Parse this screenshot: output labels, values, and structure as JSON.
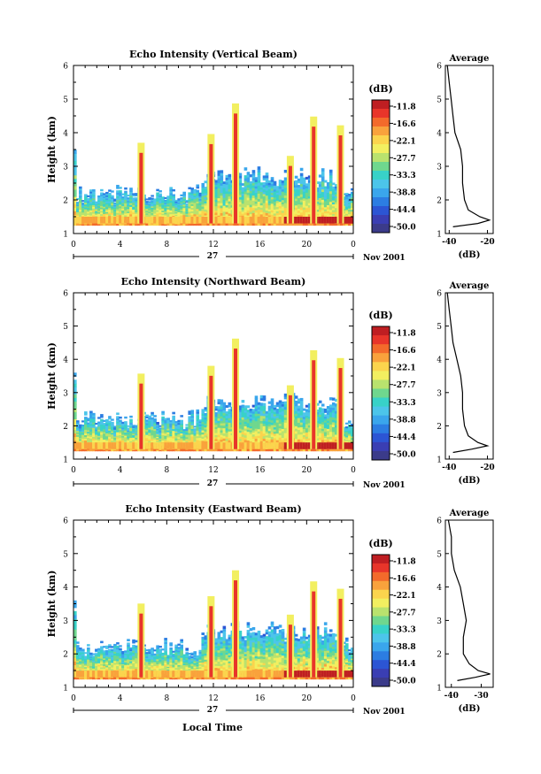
{
  "figure": {
    "xlabel": "Local Time"
  },
  "chart_data": [
    {
      "type": "heatmap",
      "title": "Echo Intensity (Vertical Beam)",
      "ylabel": "Height (km)",
      "xlabel": "",
      "x_ticks": [
        "0",
        "4",
        "8",
        "12",
        "16",
        "20",
        "0"
      ],
      "x_tick_hours": [
        0,
        4,
        8,
        12,
        16,
        20,
        24
      ],
      "y_ticks": [
        "1",
        "2",
        "3",
        "4",
        "5",
        "6"
      ],
      "y_tick_values": [
        1,
        2,
        3,
        4,
        5,
        6
      ],
      "date_label": "27",
      "month_label": "Nov 2001",
      "xlim": [
        0,
        24
      ],
      "ylim": [
        1,
        6
      ],
      "colorbar": {
        "unit": "(dB)",
        "ticks": [
          "-11.8",
          "-16.6",
          "-22.1",
          "-27.7",
          "-33.3",
          "-38.8",
          "-44.4",
          "-50.0"
        ]
      },
      "profile": {
        "title": "Average",
        "xlabel": "(dB)",
        "x_ticks": [
          "-40",
          "-20"
        ],
        "xlim": [
          -42,
          -17
        ],
        "y_ticks": [
          "1",
          "2",
          "3",
          "4",
          "5",
          "6"
        ],
        "heights": [
          1.2,
          1.3,
          1.4,
          1.5,
          1.7,
          2.0,
          2.5,
          3.0,
          3.5,
          4.0,
          4.5,
          5.0,
          5.5,
          6.0
        ],
        "values": [
          -38,
          -25,
          -19,
          -24,
          -30,
          -32,
          -33,
          -33,
          -34,
          -37,
          -38,
          -39,
          -40,
          -41
        ]
      }
    },
    {
      "type": "heatmap",
      "title": "Echo Intensity (Northward Beam)",
      "ylabel": "Height (km)",
      "xlabel": "",
      "x_ticks": [
        "0",
        "4",
        "8",
        "12",
        "16",
        "20",
        "0"
      ],
      "x_tick_hours": [
        0,
        4,
        8,
        12,
        16,
        20,
        24
      ],
      "y_ticks": [
        "1",
        "2",
        "3",
        "4",
        "5",
        "6"
      ],
      "y_tick_values": [
        1,
        2,
        3,
        4,
        5,
        6
      ],
      "date_label": "27",
      "month_label": "Nov 2001",
      "xlim": [
        0,
        24
      ],
      "ylim": [
        1,
        6
      ],
      "colorbar": {
        "unit": "(dB)",
        "ticks": [
          "-11.8",
          "-16.6",
          "-22.1",
          "-27.7",
          "-33.3",
          "-38.8",
          "-44.4",
          "-50.0"
        ]
      },
      "profile": {
        "title": "Average",
        "xlabel": "(dB)",
        "x_ticks": [
          "-40",
          "-20"
        ],
        "xlim": [
          -42,
          -17
        ],
        "y_ticks": [
          "1",
          "2",
          "3",
          "4",
          "5",
          "6"
        ],
        "heights": [
          1.2,
          1.3,
          1.4,
          1.5,
          1.7,
          2.0,
          2.5,
          3.0,
          3.5,
          4.0,
          4.5,
          5.0,
          5.5,
          6.0
        ],
        "values": [
          -38,
          -28,
          -20,
          -25,
          -30,
          -32,
          -33,
          -33,
          -34,
          -36,
          -38,
          -39,
          -40,
          -41
        ]
      }
    },
    {
      "type": "heatmap",
      "title": "Echo Intensity (Eastward Beam)",
      "ylabel": "Height (km)",
      "xlabel": "",
      "x_ticks": [
        "0",
        "4",
        "8",
        "12",
        "16",
        "20",
        "0"
      ],
      "x_tick_hours": [
        0,
        4,
        8,
        12,
        16,
        20,
        24
      ],
      "y_ticks": [
        "1",
        "2",
        "3",
        "4",
        "5",
        "6"
      ],
      "y_tick_values": [
        1,
        2,
        3,
        4,
        5,
        6
      ],
      "date_label": "27",
      "month_label": "Nov 2001",
      "xlim": [
        0,
        24
      ],
      "ylim": [
        1,
        6
      ],
      "colorbar": {
        "unit": "(dB)",
        "ticks": [
          "-11.8",
          "-16.6",
          "-22.1",
          "-27.7",
          "-33.3",
          "-38.8",
          "-44.4",
          "-50.0"
        ]
      },
      "profile": {
        "title": "Average",
        "xlabel": "(dB)",
        "x_ticks": [
          "-40",
          "-30"
        ],
        "xlim": [
          -42,
          -26
        ],
        "y_ticks": [
          "1",
          "2",
          "3",
          "4",
          "5",
          "6"
        ],
        "heights": [
          1.2,
          1.3,
          1.4,
          1.5,
          1.7,
          2.0,
          2.5,
          3.0,
          3.5,
          4.0,
          4.5,
          5.0,
          5.5,
          6.0
        ],
        "values": [
          -38,
          -32,
          -27,
          -31,
          -34,
          -36,
          -36,
          -35,
          -36,
          -37,
          -39,
          -40,
          -40,
          -41
        ]
      }
    }
  ]
}
